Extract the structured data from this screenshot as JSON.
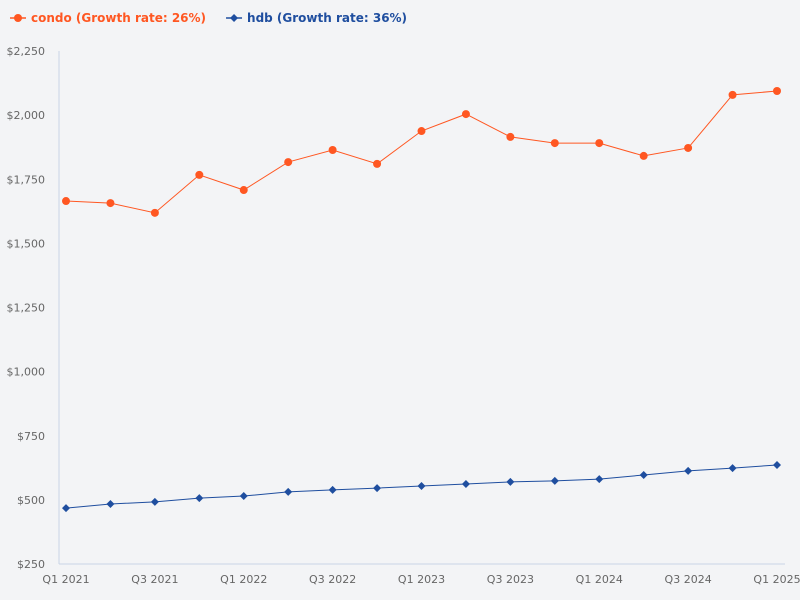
{
  "chart_data": {
    "type": "line",
    "title": "",
    "xlabel": "",
    "ylabel": "",
    "x": [
      "Q1 2021",
      "Q2 2021",
      "Q3 2021",
      "Q4 2021",
      "Q1 2022",
      "Q2 2022",
      "Q3 2022",
      "Q4 2022",
      "Q1 2023",
      "Q2 2023",
      "Q3 2023",
      "Q4 2023",
      "Q1 2024",
      "Q2 2024",
      "Q3 2024",
      "Q4 2024",
      "Q1 2025"
    ],
    "x_tick_labels": [
      "Q1 2021",
      "Q3 2021",
      "Q1 2022",
      "Q3 2022",
      "Q1 2023",
      "Q3 2023",
      "Q1 2024",
      "Q3 2024",
      "Q1 2025"
    ],
    "ylim": [
      250,
      2250
    ],
    "y_ticks": [
      250,
      500,
      750,
      1000,
      1250,
      1500,
      1750,
      2000,
      2250
    ],
    "y_tick_labels": [
      "$250",
      "$500",
      "$750",
      "$1,000",
      "$1,250",
      "$1,500",
      "$1,750",
      "$2,000",
      "$2,250"
    ],
    "grid": false,
    "legend_placement": "top-left",
    "series": [
      {
        "name": "condo (Growth rate: 26%)",
        "color": "#ff5722",
        "marker": "circle",
        "values": [
          1665,
          1657,
          1619,
          1767,
          1708,
          1817,
          1864,
          1810,
          1938,
          2004,
          1915,
          1891,
          1891,
          1841,
          1872,
          2079,
          2094
        ]
      },
      {
        "name": "hdb (Growth rate: 36%)",
        "color": "#1f4e9f",
        "marker": "diamond",
        "values": [
          468,
          484,
          492,
          507,
          515,
          531,
          539,
          546,
          554,
          562,
          570,
          574,
          581,
          597,
          613,
          624,
          636
        ]
      }
    ]
  }
}
